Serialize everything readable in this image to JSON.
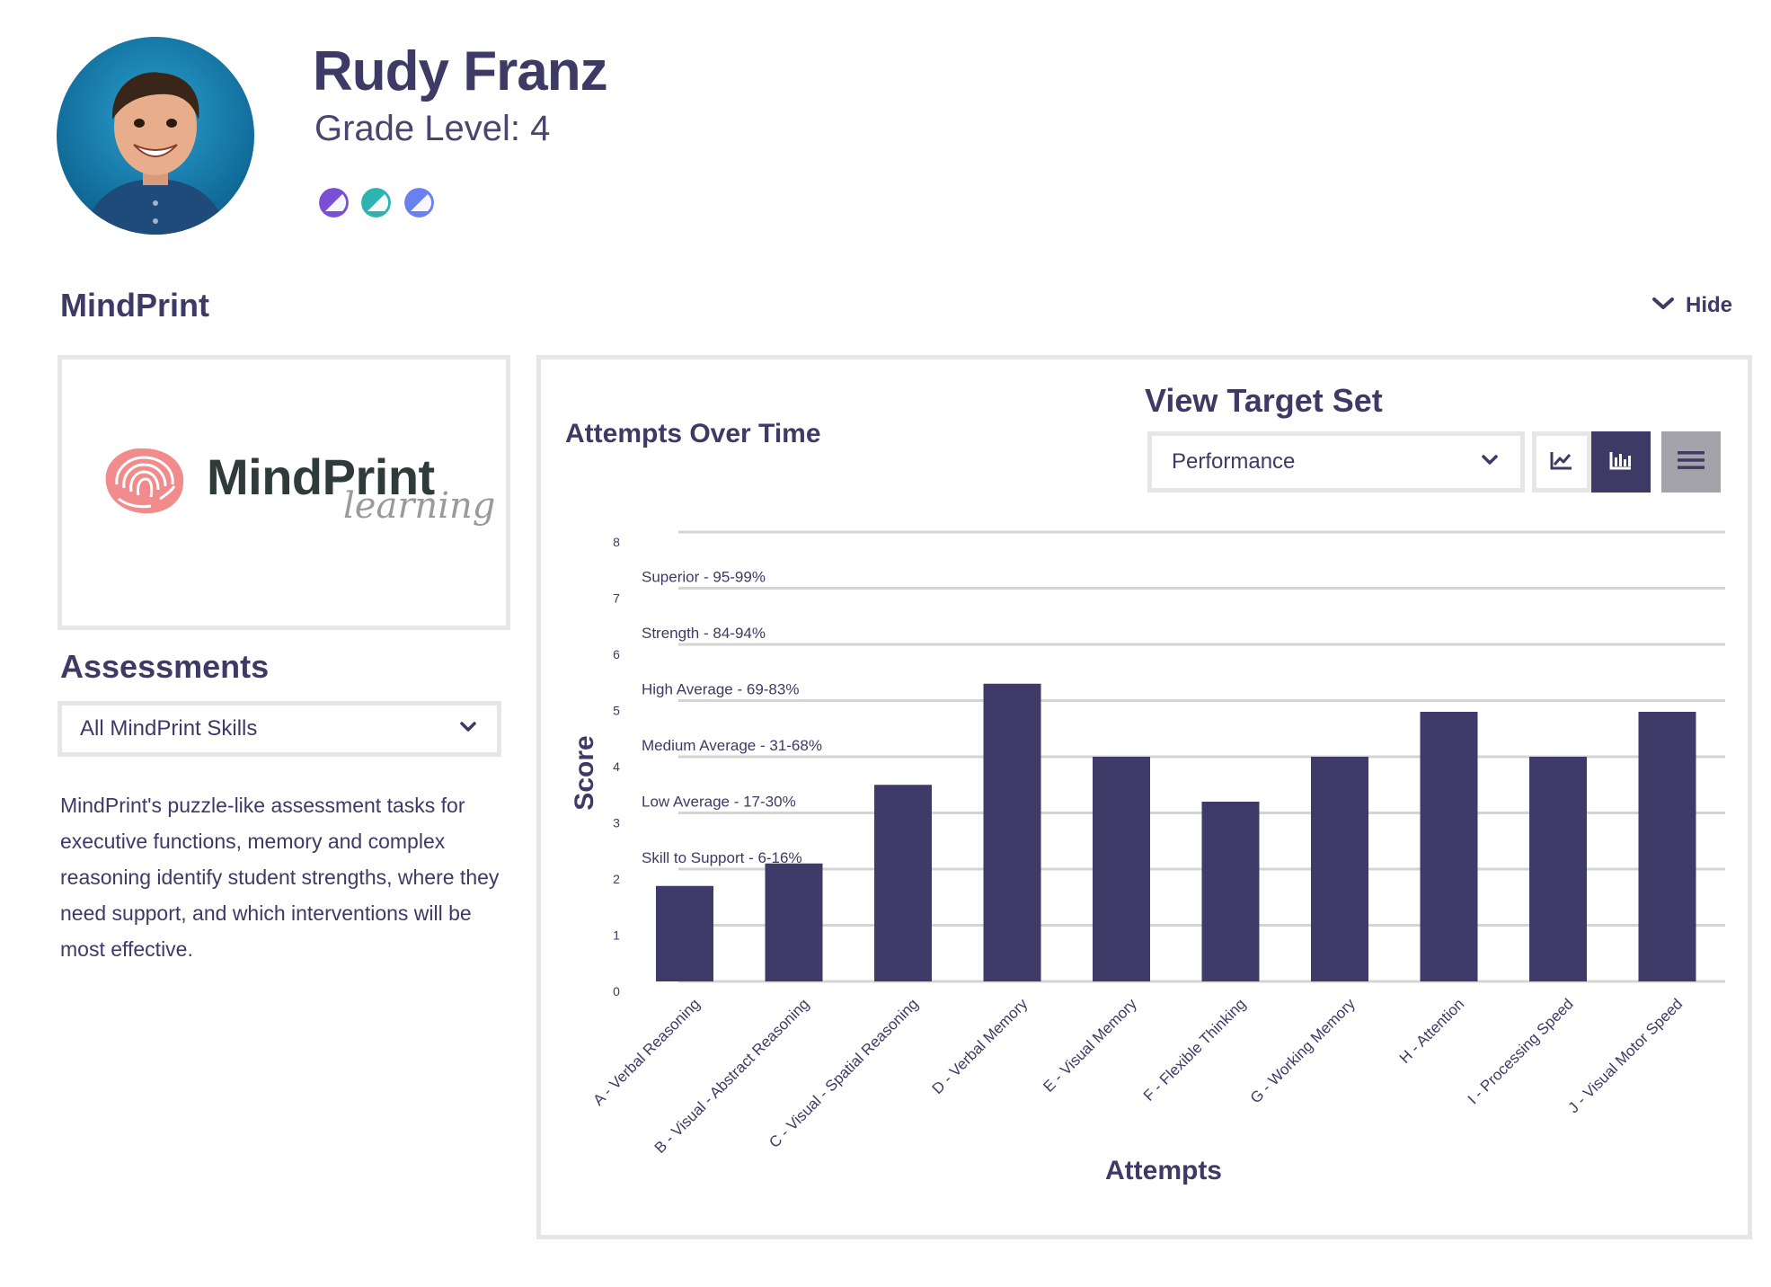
{
  "student": {
    "name": "Rudy Franz",
    "grade_level": "Grade Level: 4",
    "badge_colors": [
      "#7a4fd6",
      "#2fb3b0",
      "#6a7ff0"
    ]
  },
  "section": {
    "title": "MindPrint",
    "hide_label": "Hide"
  },
  "logo": {
    "word": "MindPrint",
    "sub": "learning"
  },
  "assessments": {
    "title": "Assessments",
    "selected": "All MindPrint Skills",
    "description": "MindPrint's puzzle-like assessment tasks for executive functions, memory and complex reasoning identify student strengths, where they need support, and which interventions will be most effective."
  },
  "chart_card": {
    "title": "Attempts Over Time",
    "target_title": "View Target Set",
    "target_selected": "Performance"
  },
  "colors": {
    "primary": "#3d3a66",
    "bar": "#3e3b68",
    "grid": "#d4d4d4",
    "border": "#e6e6e6"
  },
  "chart_data": {
    "type": "bar",
    "categories": [
      "A - Verbal Reasoning",
      "B - Visual - Abstract Reasoning",
      "C - Visual - Spatial Reasoning",
      "D - Verbal Memory",
      "E - Visual Memory",
      "F - Flexible Thinking",
      "G - Working Memory",
      "H - Attention",
      "I - Processing Speed",
      "J - Visual Motor Speed"
    ],
    "values": [
      1.7,
      2.1,
      3.5,
      5.3,
      4.0,
      3.2,
      4.0,
      4.8,
      4.0,
      4.8
    ],
    "xlabel": "Attempts",
    "ylabel": "Score",
    "ylim": [
      0,
      8
    ],
    "yticks": [
      0,
      1,
      2,
      3,
      4,
      5,
      6,
      7,
      8
    ],
    "bands": [
      {
        "label": "Skill to Support - 6-16%",
        "at": 2
      },
      {
        "label": "Low Average - 17-30%",
        "at": 3
      },
      {
        "label": "Medium Average - 31-68%",
        "at": 4
      },
      {
        "label": "High Average - 69-83%",
        "at": 5
      },
      {
        "label": "Strength - 84-94%",
        "at": 6
      },
      {
        "label": "Superior - 95-99%",
        "at": 7
      }
    ],
    "grid": true,
    "legend": "none"
  }
}
